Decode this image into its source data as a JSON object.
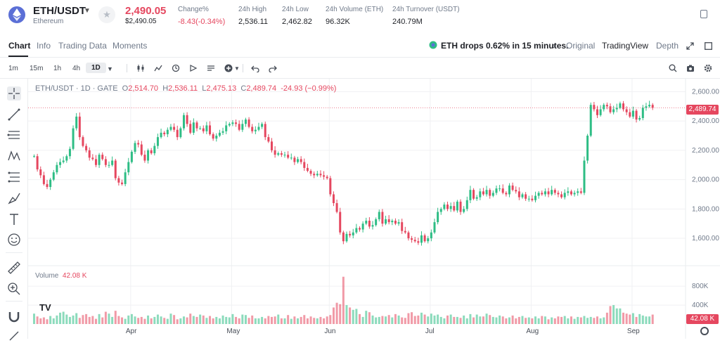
{
  "header": {
    "symbol": "ETH/USDT",
    "name": "Ethereum",
    "price": "2,490.05",
    "price_usd": "$2,490.05",
    "stats": [
      {
        "label": "Change%",
        "value": "-8.43(-0.34%)",
        "red": true
      },
      {
        "label": "24h High",
        "value": "2,536.11"
      },
      {
        "label": "24h Low",
        "value": "2,462.82"
      },
      {
        "label": "24h Volume (ETH)",
        "value": "96.32K"
      },
      {
        "label": "24h Turnover (USDT)",
        "value": "240.79M"
      }
    ]
  },
  "tabs": [
    "Chart",
    "Info",
    "Trading Data",
    "Moments"
  ],
  "news": "ETH drops 0.62% in 15 minutes.",
  "view_tabs": [
    "Original",
    "TradingView",
    "Depth"
  ],
  "intervals": [
    "1m",
    "15m",
    "1h",
    "4h",
    "1D"
  ],
  "legend": {
    "pair": "ETH/USDT · 1D · GATE",
    "o_label": "O",
    "o": "2,514.70",
    "h_label": "H",
    "h": "2,536.11",
    "l_label": "L",
    "l": "2,475.13",
    "c_label": "C",
    "c": "2,489.74",
    "chg": "-24.93 (−0.99%)"
  },
  "volume_legend": {
    "label": "Volume",
    "value": "42.08 K"
  },
  "price_tag": "2,489.74",
  "volume_tag": "42.08 K",
  "tv_logo": "TV",
  "colors": {
    "up": "#2ebd85",
    "down": "#e5475f",
    "grid": "#f0f1f3"
  },
  "chart_data": {
    "type": "candlestick",
    "y_ticks": [
      "2,600.00",
      "2,400.00",
      "2,200.00",
      "2,000.00",
      "1,800.00",
      "1,600.00"
    ],
    "y_tick_values": [
      2600,
      2400,
      2200,
      2000,
      1800,
      1600
    ],
    "ylim": [
      1490,
      2650
    ],
    "vol_ticks": [
      "800K",
      "400K"
    ],
    "vol_tick_values": [
      800,
      400
    ],
    "vol_max": 1100,
    "x_ticks": [
      "Apr",
      "May",
      "Jun",
      "Jul",
      "Aug",
      "Sep"
    ],
    "x_tick_index": [
      30,
      61,
      91,
      122,
      153,
      184
    ],
    "closes": [
      2160,
      2070,
      2030,
      1970,
      1950,
      2000,
      2050,
      2100,
      2120,
      2130,
      2160,
      2210,
      2350,
      2430,
      2290,
      2230,
      2200,
      2150,
      2140,
      2100,
      2170,
      2140,
      2100,
      2100,
      2130,
      2010,
      1980,
      1970,
      2050,
      2120,
      2190,
      2250,
      2240,
      2170,
      2130,
      2200,
      2180,
      2230,
      2290,
      2320,
      2310,
      2340,
      2360,
      2340,
      2290,
      2350,
      2440,
      2380,
      2320,
      2390,
      2350,
      2350,
      2330,
      2370,
      2310,
      2280,
      2300,
      2320,
      2330,
      2370,
      2380,
      2390,
      2380,
      2340,
      2380,
      2410,
      2360,
      2330,
      2340,
      2360,
      2380,
      2290,
      2260,
      2200,
      2170,
      2180,
      2170,
      2170,
      2150,
      2150,
      2120,
      2140,
      2120,
      2080,
      2060,
      2040,
      2030,
      2040,
      2030,
      2020,
      2010,
      1900,
      1840,
      1780,
      1640,
      1580,
      1630,
      1620,
      1640,
      1670,
      1660,
      1700,
      1720,
      1680,
      1690,
      1730,
      1780,
      1700,
      1730,
      1710,
      1720,
      1700,
      1710,
      1650,
      1640,
      1600,
      1590,
      1580,
      1570,
      1620,
      1580,
      1600,
      1640,
      1710,
      1780,
      1800,
      1830,
      1800,
      1820,
      1790,
      1850,
      1780,
      1800,
      1860,
      1930,
      1870,
      1880,
      1920,
      1900,
      1930,
      1890,
      1910,
      1940,
      1940,
      1910,
      1900,
      1960,
      1930,
      1920,
      1880,
      1900,
      1870,
      1870,
      1860,
      1890,
      1910,
      1900,
      1920,
      1900,
      1930,
      1910,
      1900,
      1880,
      1910,
      1920,
      1900,
      1910,
      1920,
      1910,
      2130,
      2300,
      2510,
      2480,
      2440,
      2480,
      2510,
      2500,
      2460,
      2480,
      2490,
      2520,
      2480,
      2460,
      2430,
      2470,
      2410,
      2420,
      2490,
      2500,
      2510,
      2490
    ],
    "volumes": [
      220,
      160,
      120,
      140,
      100,
      170,
      120,
      180,
      240,
      260,
      200,
      150,
      180,
      230,
      130,
      190,
      210,
      150,
      170,
      110,
      210,
      140,
      260,
      220,
      150,
      280,
      170,
      140,
      110,
      180,
      210,
      160,
      130,
      150,
      110,
      180,
      120,
      150,
      200,
      160,
      130,
      110,
      220,
      190,
      100,
      120,
      160,
      140,
      220,
      170,
      150,
      200,
      180,
      130,
      170,
      120,
      150,
      120,
      180,
      150,
      140,
      210,
      150,
      120,
      200,
      190,
      130,
      180,
      120,
      120,
      150,
      120,
      170,
      150,
      160,
      200,
      120,
      120,
      190,
      110,
      160,
      120,
      150,
      190,
      120,
      160,
      130,
      120,
      150,
      120,
      160,
      190,
      350,
      450,
      420,
      1000,
      400,
      350,
      300,
      320,
      210,
      150,
      280,
      250,
      180,
      140,
      150,
      170,
      160,
      190,
      140,
      210,
      180,
      140,
      130,
      230,
      250,
      170,
      180,
      240,
      200,
      160,
      220,
      180,
      200,
      150,
      120,
      180,
      200,
      150,
      150,
      130,
      180,
      120,
      210,
      140,
      200,
      160,
      160,
      220,
      190,
      150,
      140,
      180,
      160,
      120,
      140,
      180,
      120,
      150,
      170,
      130,
      140,
      120,
      160,
      120,
      170,
      160,
      100,
      140,
      120,
      160,
      150,
      170,
      120,
      160,
      110,
      150,
      140,
      170,
      130,
      150,
      130,
      160,
      120,
      140,
      240,
      380,
      400,
      330,
      330,
      240,
      220,
      200,
      230,
      150,
      210,
      180,
      160,
      160,
      200,
      150,
      130,
      150,
      150,
      130,
      120
    ]
  }
}
